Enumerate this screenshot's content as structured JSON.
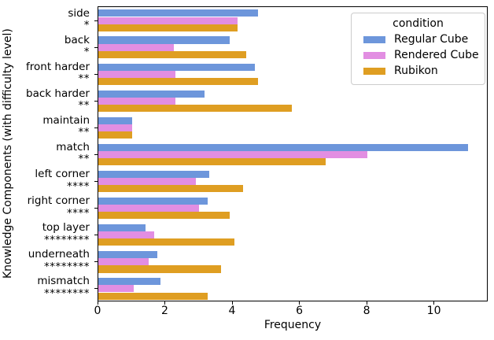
{
  "chart_data": {
    "type": "bar",
    "orientation": "horizontal",
    "title": "",
    "xlabel": "Frequency",
    "ylabel": "Knowledge Components (with difficulty level)",
    "xlim": [
      0,
      11.6
    ],
    "xticks": [
      0,
      2,
      4,
      6,
      8,
      10
    ],
    "grid": false,
    "legend": {
      "title": "condition",
      "position": "upper right"
    },
    "categories": [
      "side",
      "back",
      "front harder",
      "back harder",
      "maintain",
      "match",
      "left corner",
      "right corner",
      "top layer",
      "underneath",
      "mismatch"
    ],
    "difficulty_labels": [
      "*",
      "*",
      "**",
      "**",
      "**",
      "**",
      "****",
      "****",
      "********",
      "********",
      "********"
    ],
    "series": [
      {
        "name": "Regular Cube",
        "color": "#6d96db",
        "values": [
          4.75,
          3.9,
          4.65,
          3.15,
          1.0,
          11.0,
          3.3,
          3.25,
          1.4,
          1.75,
          1.85
        ]
      },
      {
        "name": "Rendered Cube",
        "color": "#e28ee2",
        "values": [
          4.15,
          2.25,
          2.3,
          2.3,
          1.0,
          8.0,
          2.9,
          3.0,
          1.65,
          1.5,
          1.05
        ]
      },
      {
        "name": "Rubikon",
        "color": "#df9e22",
        "values": [
          4.15,
          4.4,
          4.75,
          5.75,
          1.0,
          6.75,
          4.3,
          3.9,
          4.05,
          3.65,
          3.25
        ]
      }
    ]
  }
}
